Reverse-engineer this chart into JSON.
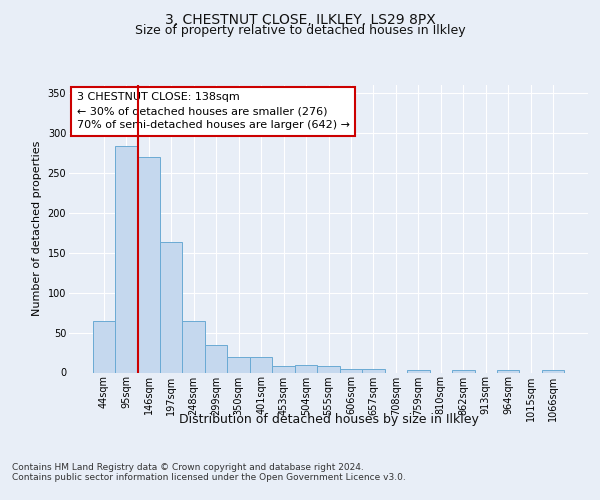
{
  "title1": "3, CHESTNUT CLOSE, ILKLEY, LS29 8PX",
  "title2": "Size of property relative to detached houses in Ilkley",
  "xlabel": "Distribution of detached houses by size in Ilkley",
  "ylabel": "Number of detached properties",
  "categories": [
    "44sqm",
    "95sqm",
    "146sqm",
    "197sqm",
    "248sqm",
    "299sqm",
    "350sqm",
    "401sqm",
    "453sqm",
    "504sqm",
    "555sqm",
    "606sqm",
    "657sqm",
    "708sqm",
    "759sqm",
    "810sqm",
    "862sqm",
    "913sqm",
    "964sqm",
    "1015sqm",
    "1066sqm"
  ],
  "values": [
    65,
    283,
    270,
    163,
    65,
    35,
    20,
    20,
    8,
    9,
    8,
    5,
    4,
    0,
    3,
    0,
    3,
    0,
    3,
    0,
    3
  ],
  "bar_color": "#c5d8ee",
  "bar_edge_color": "#6aaad4",
  "vline_color": "#cc0000",
  "vline_x_index": 1.5,
  "annotation_text": "3 CHESTNUT CLOSE: 138sqm\n← 30% of detached houses are smaller (276)\n70% of semi-detached houses are larger (642) →",
  "annotation_box_facecolor": "#ffffff",
  "annotation_box_edgecolor": "#cc0000",
  "footer_text": "Contains HM Land Registry data © Crown copyright and database right 2024.\nContains public sector information licensed under the Open Government Licence v3.0.",
  "ylim": [
    0,
    360
  ],
  "yticks": [
    0,
    50,
    100,
    150,
    200,
    250,
    300,
    350
  ],
  "bg_color": "#e8eef7",
  "plot_bg_color": "#e8eef7",
  "grid_color": "#ffffff",
  "title1_fontsize": 10,
  "title2_fontsize": 9,
  "xlabel_fontsize": 9,
  "ylabel_fontsize": 8,
  "tick_fontsize": 7,
  "annotation_fontsize": 8,
  "footer_fontsize": 6.5
}
